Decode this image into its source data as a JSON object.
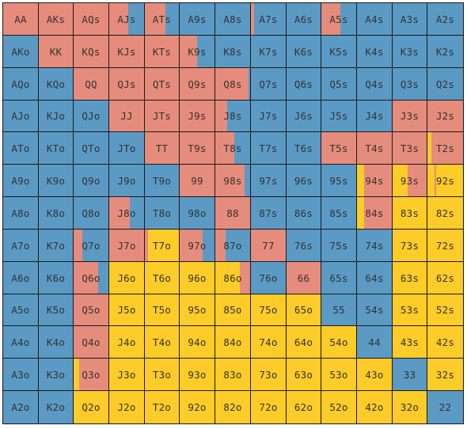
{
  "colors": {
    "R": "#e68c7c",
    "B": "#5b9ac4",
    "Y": "#fdcc28"
  },
  "rows": [
    [
      "AA",
      "AKs",
      "AQs",
      "AJs",
      "ATs",
      "A9s",
      "A8s",
      "A7s",
      "A6s",
      "A5s",
      "A4s",
      "A3s",
      "A2s"
    ],
    [
      "AKo",
      "KK",
      "KQs",
      "KJs",
      "KTs",
      "K9s",
      "K8s",
      "K7s",
      "K6s",
      "K5s",
      "K4s",
      "K3s",
      "K2s"
    ],
    [
      "AQo",
      "KQo",
      "QQ",
      "QJs",
      "QTs",
      "Q9s",
      "Q8s",
      "Q7s",
      "Q6s",
      "Q5s",
      "Q4s",
      "Q3s",
      "Q2s"
    ],
    [
      "AJo",
      "KJo",
      "QJo",
      "JJ",
      "JTs",
      "J9s",
      "J8s",
      "J7s",
      "J6s",
      "J5s",
      "J4s",
      "J3s",
      "J2s"
    ],
    [
      "ATo",
      "KTo",
      "QTo",
      "JTo",
      "TT",
      "T9s",
      "T8s",
      "T7s",
      "T6s",
      "T5s",
      "T4s",
      "T3s",
      "T2s"
    ],
    [
      "A9o",
      "K9o",
      "Q9o",
      "J9o",
      "T9o",
      "99",
      "98s",
      "97s",
      "96s",
      "95s",
      "94s",
      "93s",
      "92s"
    ],
    [
      "A8o",
      "K8o",
      "Q8o",
      "J8o",
      "T8o",
      "98o",
      "88",
      "87s",
      "86s",
      "85s",
      "84s",
      "83s",
      "82s"
    ],
    [
      "A7o",
      "K7o",
      "Q7o",
      "J7o",
      "T7o",
      "97o",
      "87o",
      "77",
      "76s",
      "75s",
      "74s",
      "73s",
      "72s"
    ],
    [
      "A6o",
      "K6o",
      "Q6o",
      "J6o",
      "T6o",
      "96o",
      "86o",
      "76o",
      "66",
      "65s",
      "64s",
      "63s",
      "62s"
    ],
    [
      "A5o",
      "K5o",
      "Q5o",
      "J5o",
      "T5o",
      "95o",
      "85o",
      "75o",
      "65o",
      "55",
      "54s",
      "53s",
      "52s"
    ],
    [
      "A4o",
      "K4o",
      "Q4o",
      "J4o",
      "T4o",
      "94o",
      "84o",
      "74o",
      "64o",
      "54o",
      "44",
      "43s",
      "42s"
    ],
    [
      "A3o",
      "K3o",
      "Q3o",
      "J3o",
      "T3o",
      "93o",
      "83o",
      "73o",
      "63o",
      "53o",
      "43o",
      "33",
      "32s"
    ],
    [
      "A2o",
      "K2o",
      "Q2o",
      "J2o",
      "T2o",
      "92o",
      "82o",
      "72o",
      "62o",
      "52o",
      "42o",
      "32o",
      "22"
    ]
  ],
  "fills": [
    [
      [
        [
          "R",
          1
        ]
      ],
      [
        [
          "R",
          1
        ]
      ],
      [
        [
          "R",
          1
        ]
      ],
      [
        [
          "R",
          0.55
        ],
        [
          "B",
          0.45
        ]
      ],
      [
        [
          "R",
          0.6
        ],
        [
          "B",
          0.4
        ]
      ],
      [
        [
          "B",
          1
        ]
      ],
      [
        [
          "B",
          1
        ]
      ],
      [
        [
          "R",
          0.1
        ],
        [
          "B",
          0.9
        ]
      ],
      [
        [
          "B",
          1
        ]
      ],
      [
        [
          "R",
          0.55
        ],
        [
          "B",
          0.45
        ]
      ],
      [
        [
          "B",
          1
        ]
      ],
      [
        [
          "B",
          1
        ]
      ],
      [
        [
          "B",
          1
        ]
      ]
    ],
    [
      [
        [
          "B",
          1
        ]
      ],
      [
        [
          "R",
          1
        ]
      ],
      [
        [
          "R",
          1
        ]
      ],
      [
        [
          "R",
          1
        ]
      ],
      [
        [
          "R",
          1
        ]
      ],
      [
        [
          "R",
          0.5
        ],
        [
          "B",
          0.5
        ]
      ],
      [
        [
          "B",
          1
        ]
      ],
      [
        [
          "B",
          1
        ]
      ],
      [
        [
          "B",
          1
        ]
      ],
      [
        [
          "B",
          1
        ]
      ],
      [
        [
          "B",
          1
        ]
      ],
      [
        [
          "B",
          1
        ]
      ],
      [
        [
          "B",
          1
        ]
      ]
    ],
    [
      [
        [
          "B",
          1
        ]
      ],
      [
        [
          "B",
          1
        ]
      ],
      [
        [
          "R",
          1
        ]
      ],
      [
        [
          "R",
          1
        ]
      ],
      [
        [
          "R",
          1
        ]
      ],
      [
        [
          "R",
          1
        ]
      ],
      [
        [
          "R",
          0.95
        ],
        [
          "B",
          0.05
        ]
      ],
      [
        [
          "B",
          1
        ]
      ],
      [
        [
          "B",
          1
        ]
      ],
      [
        [
          "B",
          1
        ]
      ],
      [
        [
          "B",
          1
        ]
      ],
      [
        [
          "B",
          1
        ]
      ],
      [
        [
          "B",
          1
        ]
      ]
    ],
    [
      [
        [
          "B",
          1
        ]
      ],
      [
        [
          "B",
          1
        ]
      ],
      [
        [
          "B",
          1
        ]
      ],
      [
        [
          "R",
          1
        ]
      ],
      [
        [
          "R",
          1
        ]
      ],
      [
        [
          "R",
          1
        ]
      ],
      [
        [
          "R",
          0.35
        ],
        [
          "B",
          0.65
        ]
      ],
      [
        [
          "B",
          1
        ]
      ],
      [
        [
          "B",
          1
        ]
      ],
      [
        [
          "B",
          1
        ]
      ],
      [
        [
          "B",
          1
        ]
      ],
      [
        [
          "R",
          1
        ]
      ],
      [
        [
          "R",
          1
        ]
      ]
    ],
    [
      [
        [
          "B",
          1
        ]
      ],
      [
        [
          "B",
          1
        ]
      ],
      [
        [
          "B",
          1
        ]
      ],
      [
        [
          "B",
          1
        ]
      ],
      [
        [
          "R",
          1
        ]
      ],
      [
        [
          "R",
          1
        ]
      ],
      [
        [
          "R",
          0.55
        ],
        [
          "B",
          0.45
        ]
      ],
      [
        [
          "B",
          1
        ]
      ],
      [
        [
          "B",
          1
        ]
      ],
      [
        [
          "R",
          1
        ]
      ],
      [
        [
          "R",
          1
        ]
      ],
      [
        [
          "R",
          1
        ]
      ],
      [
        [
          "Y",
          0.12
        ],
        [
          "R",
          0.88
        ]
      ]
    ],
    [
      [
        [
          "B",
          1
        ]
      ],
      [
        [
          "B",
          1
        ]
      ],
      [
        [
          "B",
          1
        ]
      ],
      [
        [
          "B",
          1
        ]
      ],
      [
        [
          "B",
          1
        ]
      ],
      [
        [
          "R",
          1
        ]
      ],
      [
        [
          "R",
          0.85
        ],
        [
          "B",
          0.15
        ]
      ],
      [
        [
          "B",
          1
        ]
      ],
      [
        [
          "B",
          1
        ]
      ],
      [
        [
          "B",
          1
        ]
      ],
      [
        [
          "Y",
          0.2
        ],
        [
          "R",
          0.8
        ]
      ],
      [
        [
          "Y",
          0.45
        ],
        [
          "R",
          0.55
        ]
      ],
      [
        [
          "Y",
          0.2
        ],
        [
          "R",
          0.05
        ],
        [
          "Y",
          0.75
        ]
      ]
    ],
    [
      [
        [
          "B",
          1
        ]
      ],
      [
        [
          "B",
          1
        ]
      ],
      [
        [
          "B",
          1
        ]
      ],
      [
        [
          "R",
          0.6
        ],
        [
          "B",
          0.4
        ]
      ],
      [
        [
          "B",
          1
        ]
      ],
      [
        [
          "B",
          1
        ]
      ],
      [
        [
          "R",
          1
        ]
      ],
      [
        [
          "B",
          1
        ]
      ],
      [
        [
          "B",
          1
        ]
      ],
      [
        [
          "B",
          1
        ]
      ],
      [
        [
          "Y",
          0.2
        ],
        [
          "R",
          0.8
        ]
      ],
      [
        [
          "Y",
          1
        ]
      ],
      [
        [
          "Y",
          1
        ]
      ]
    ],
    [
      [
        [
          "B",
          1
        ]
      ],
      [
        [
          "B",
          1
        ]
      ],
      [
        [
          "R",
          0.25
        ],
        [
          "B",
          0.75
        ]
      ],
      [
        [
          "R",
          1
        ]
      ],
      [
        [
          "R",
          0.1
        ],
        [
          "Y",
          0.9
        ]
      ],
      [
        [
          "R",
          0.65
        ],
        [
          "B",
          0.35
        ]
      ],
      [
        [
          "R",
          0.3
        ],
        [
          "B",
          0.7
        ]
      ],
      [
        [
          "R",
          1
        ]
      ],
      [
        [
          "B",
          1
        ]
      ],
      [
        [
          "B",
          1
        ]
      ],
      [
        [
          "B",
          1
        ]
      ],
      [
        [
          "Y",
          1
        ]
      ],
      [
        [
          "Y",
          1
        ]
      ]
    ],
    [
      [
        [
          "B",
          1
        ]
      ],
      [
        [
          "B",
          1
        ]
      ],
      [
        [
          "R",
          0.7
        ],
        [
          "B",
          0.3
        ]
      ],
      [
        [
          "Y",
          1
        ]
      ],
      [
        [
          "Y",
          1
        ]
      ],
      [
        [
          "Y",
          1
        ]
      ],
      [
        [
          "Y",
          0.7
        ],
        [
          "R",
          0.3
        ]
      ],
      [
        [
          "B",
          1
        ]
      ],
      [
        [
          "R",
          1
        ]
      ],
      [
        [
          "B",
          1
        ]
      ],
      [
        [
          "B",
          1
        ]
      ],
      [
        [
          "Y",
          1
        ]
      ],
      [
        [
          "Y",
          1
        ]
      ]
    ],
    [
      [
        [
          "B",
          1
        ]
      ],
      [
        [
          "B",
          1
        ]
      ],
      [
        [
          "R",
          1
        ]
      ],
      [
        [
          "Y",
          1
        ]
      ],
      [
        [
          "Y",
          1
        ]
      ],
      [
        [
          "Y",
          1
        ]
      ],
      [
        [
          "Y",
          1
        ]
      ],
      [
        [
          "Y",
          1
        ]
      ],
      [
        [
          "Y",
          1
        ]
      ],
      [
        [
          "B",
          1
        ]
      ],
      [
        [
          "B",
          1
        ]
      ],
      [
        [
          "Y",
          1
        ]
      ],
      [
        [
          "Y",
          1
        ]
      ]
    ],
    [
      [
        [
          "B",
          1
        ]
      ],
      [
        [
          "B",
          1
        ]
      ],
      [
        [
          "R",
          1
        ]
      ],
      [
        [
          "Y",
          1
        ]
      ],
      [
        [
          "Y",
          1
        ]
      ],
      [
        [
          "Y",
          1
        ]
      ],
      [
        [
          "Y",
          1
        ]
      ],
      [
        [
          "Y",
          1
        ]
      ],
      [
        [
          "Y",
          1
        ]
      ],
      [
        [
          "Y",
          1
        ]
      ],
      [
        [
          "B",
          1
        ]
      ],
      [
        [
          "Y",
          1
        ]
      ],
      [
        [
          "Y",
          1
        ]
      ]
    ],
    [
      [
        [
          "B",
          1
        ]
      ],
      [
        [
          "B",
          1
        ]
      ],
      [
        [
          "Y",
          0.15
        ],
        [
          "R",
          0.85
        ]
      ],
      [
        [
          "Y",
          1
        ]
      ],
      [
        [
          "Y",
          1
        ]
      ],
      [
        [
          "Y",
          1
        ]
      ],
      [
        [
          "Y",
          1
        ]
      ],
      [
        [
          "Y",
          1
        ]
      ],
      [
        [
          "Y",
          1
        ]
      ],
      [
        [
          "Y",
          1
        ]
      ],
      [
        [
          "Y",
          1
        ]
      ],
      [
        [
          "B",
          1
        ]
      ],
      [
        [
          "Y",
          1
        ]
      ]
    ],
    [
      [
        [
          "B",
          1
        ]
      ],
      [
        [
          "B",
          1
        ]
      ],
      [
        [
          "Y",
          1
        ]
      ],
      [
        [
          "Y",
          1
        ]
      ],
      [
        [
          "Y",
          1
        ]
      ],
      [
        [
          "Y",
          1
        ]
      ],
      [
        [
          "Y",
          1
        ]
      ],
      [
        [
          "Y",
          1
        ]
      ],
      [
        [
          "Y",
          1
        ]
      ],
      [
        [
          "Y",
          1
        ]
      ],
      [
        [
          "Y",
          1
        ]
      ],
      [
        [
          "Y",
          1
        ]
      ],
      [
        [
          "B",
          1
        ]
      ]
    ]
  ]
}
